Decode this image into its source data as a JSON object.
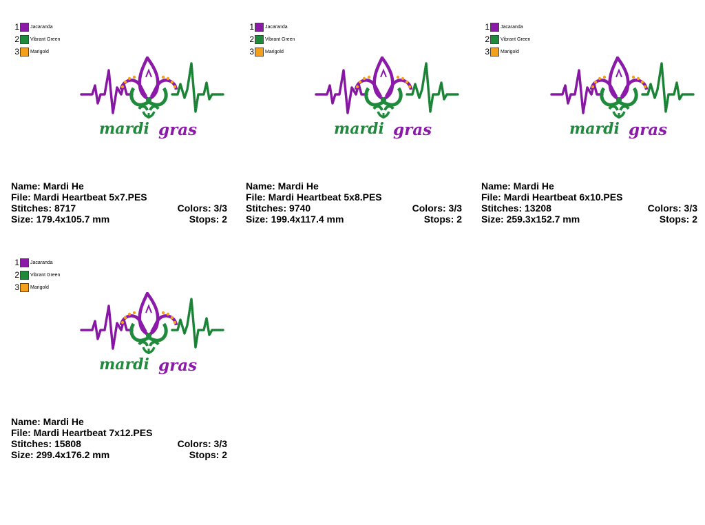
{
  "colors_legend": [
    {
      "num": "1",
      "name": "Jacaranda",
      "hex": "#8b1aa8"
    },
    {
      "num": "2",
      "name": "Vibrant Green",
      "hex": "#1f8a3b"
    },
    {
      "num": "3",
      "name": "Marigold",
      "hex": "#f3a01c"
    }
  ],
  "artwork": {
    "word1": "mardi",
    "word2": "gras"
  },
  "designs": [
    {
      "name": "Name: Mardi He",
      "file": "File: Mardi Heartbeat 5x7.PES",
      "stitches": "Stitches: 8717",
      "colors": "Colors: 3/3",
      "size": "Size: 179.4x105.7 mm",
      "stops": "Stops: 2"
    },
    {
      "name": "Name: Mardi He",
      "file": "File: Mardi Heartbeat 5x8.PES",
      "stitches": "Stitches: 9740",
      "colors": "Colors: 3/3",
      "size": "Size: 199.4x117.4 mm",
      "stops": "Stops: 2"
    },
    {
      "name": "Name: Mardi He",
      "file": "File: Mardi Heartbeat 6x10.PES",
      "stitches": "Stitches: 13208",
      "colors": "Colors: 3/3",
      "size": "Size: 259.3x152.7 mm",
      "stops": "Stops: 2"
    },
    {
      "name": "Name: Mardi He",
      "file": "File: Mardi Heartbeat 7x12.PES",
      "stitches": "Stitches: 15808",
      "colors": "Colors: 3/3",
      "size": "Size: 299.4x176.2 mm",
      "stops": "Stops: 2"
    }
  ]
}
